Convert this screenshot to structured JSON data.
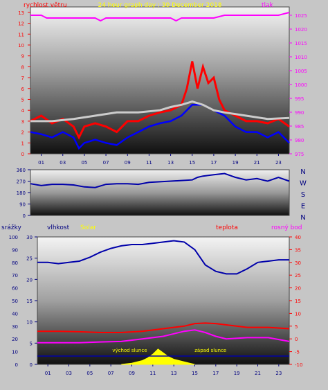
{
  "colors": {
    "frame_bg": "#c6c6c6",
    "wind_avg": "#ff0000",
    "wind_gust": "#0000ff",
    "temp_line": "#cccccc",
    "pressure": "#ff00ff",
    "direction": "#0000aa",
    "humidity": "#0000aa",
    "temperature": "#ff0000",
    "dewpoint": "#ff00ff",
    "solar": "#ffff00",
    "rain": "#0000aa",
    "title": "#ffff00"
  },
  "chart_data": [
    {
      "type": "line",
      "title": "24 hour graph day : 30 December 2018",
      "left_label": "rychlost větru",
      "right_label": "tlak",
      "left_ticks": [
        0,
        1,
        2,
        3,
        4,
        5,
        6,
        7,
        8,
        9,
        10,
        11,
        12,
        13
      ],
      "right_ticks": [
        975,
        980,
        985,
        990,
        995,
        1000,
        1005,
        1010,
        1015,
        1020,
        1025
      ],
      "x_ticks": [
        "01",
        "03",
        "05",
        "07",
        "09",
        "11",
        "13",
        "15",
        "17",
        "19",
        "21",
        "23"
      ],
      "ylim_left": [
        0,
        13.5
      ],
      "ylim_right": [
        975,
        1028
      ],
      "x_range": [
        0,
        24
      ],
      "series": [
        {
          "kind": "pressure",
          "x": [
            0,
            1,
            1.5,
            2,
            3,
            4,
            5,
            6,
            6.5,
            7,
            8,
            9,
            10,
            11,
            12,
            13,
            13.5,
            14,
            15,
            16,
            17,
            18,
            19,
            20,
            21,
            22,
            23,
            24
          ],
          "y": [
            1025,
            1025,
            1024,
            1024,
            1024,
            1024,
            1024,
            1024,
            1023,
            1024,
            1024,
            1024,
            1024,
            1024,
            1024,
            1024,
            1023,
            1024,
            1024,
            1024,
            1024,
            1025,
            1025,
            1025,
            1025,
            1025,
            1025,
            1026
          ]
        },
        {
          "kind": "wind_avg",
          "x": [
            0,
            1,
            2,
            3,
            4,
            4.5,
            5,
            6,
            7,
            8,
            9,
            10,
            11,
            12,
            13,
            14,
            14.5,
            15,
            15.5,
            16,
            16.5,
            17,
            17.5,
            18,
            19,
            20,
            21,
            22,
            23,
            24
          ],
          "y": [
            3,
            3.5,
            2.8,
            3.2,
            2.5,
            1.5,
            2.5,
            2.8,
            2.5,
            2,
            3,
            3,
            3.5,
            3.8,
            4,
            4.5,
            6,
            8.5,
            6,
            8,
            6.5,
            7,
            5,
            4,
            3.5,
            3,
            3,
            2.8,
            3.2,
            2.5
          ]
        },
        {
          "kind": "wind_gust",
          "x": [
            0,
            1,
            2,
            3,
            4,
            4.5,
            5,
            6,
            7,
            8,
            9,
            10,
            11,
            12,
            13,
            14,
            15,
            16,
            17,
            18,
            19,
            20,
            21,
            22,
            23,
            24
          ],
          "y": [
            2,
            1.8,
            1.5,
            2,
            1.5,
            0.5,
            1,
            1.3,
            1,
            0.8,
            1.5,
            2,
            2.5,
            2.8,
            3,
            3.5,
            4.5,
            4.5,
            4,
            3.5,
            2.5,
            2,
            2,
            1.5,
            2,
            1
          ]
        },
        {
          "kind": "temp_line",
          "x": [
            0,
            2,
            4,
            6,
            8,
            10,
            12,
            13,
            14,
            15,
            16,
            17,
            18,
            20,
            22,
            24
          ],
          "y": [
            3,
            3,
            3.2,
            3.5,
            3.8,
            3.8,
            4,
            4.3,
            4.5,
            4.8,
            4.5,
            4,
            3.8,
            3.5,
            3.2,
            3.3
          ]
        }
      ]
    },
    {
      "type": "line",
      "left_ticks": [
        0,
        90,
        180,
        270,
        360
      ],
      "right_labels": [
        "N",
        "W",
        "S",
        "E",
        "N"
      ],
      "x_range": [
        0,
        24
      ],
      "ylim": [
        0,
        360
      ],
      "series": [
        {
          "kind": "direction",
          "x": [
            0,
            1,
            2,
            3,
            4,
            5,
            6,
            7,
            8,
            9,
            10,
            11,
            12,
            13,
            14,
            15,
            15.5,
            16,
            17,
            18,
            19,
            20,
            21,
            22,
            23,
            24
          ],
          "y": [
            250,
            235,
            245,
            245,
            240,
            225,
            220,
            245,
            250,
            250,
            245,
            260,
            265,
            270,
            275,
            280,
            300,
            310,
            320,
            330,
            300,
            280,
            290,
            270,
            300,
            270
          ]
        }
      ]
    },
    {
      "type": "line",
      "labels": {
        "rain": "srážky",
        "humidity": "vlhkost",
        "solar": "Solar",
        "temperature": "teplota",
        "dewpoint": "rosný bod"
      },
      "left_ticks_rain": [
        0,
        10,
        20,
        30,
        40,
        50,
        60,
        70,
        80,
        90,
        100
      ],
      "left_ticks_rain_axis": [
        0,
        5,
        10,
        15,
        20,
        25,
        30
      ],
      "right_ticks_temp": [
        -10,
        -5,
        0,
        5,
        10,
        15,
        20,
        25,
        30,
        35,
        40
      ],
      "x_ticks": [
        "01",
        "03",
        "05",
        "07",
        "09",
        "11",
        "13",
        "15",
        "17",
        "19",
        "21",
        "23"
      ],
      "annotations": [
        "východ slunce",
        "západ slunce"
      ],
      "x_range": [
        0,
        24
      ],
      "series": [
        {
          "kind": "humidity",
          "x": [
            0,
            1,
            2,
            3,
            4,
            5,
            6,
            7,
            8,
            9,
            10,
            11,
            12,
            13,
            14,
            15,
            16,
            17,
            18,
            19,
            20,
            21,
            22,
            23,
            24
          ],
          "y": [
            80,
            80,
            79,
            80,
            81,
            84,
            88,
            91,
            93,
            94,
            94,
            95,
            96,
            97,
            96,
            90,
            78,
            73,
            71,
            71,
            75,
            80,
            81,
            82,
            82
          ]
        },
        {
          "kind": "temperature",
          "x": [
            0,
            2,
            4,
            6,
            8,
            10,
            12,
            14,
            15,
            16,
            17,
            18,
            20,
            22,
            24
          ],
          "y": [
            3,
            3,
            2.8,
            2.5,
            2.5,
            3,
            4,
            5,
            6,
            6.2,
            6,
            5.5,
            4.5,
            4.5,
            4
          ]
        },
        {
          "kind": "dewpoint",
          "x": [
            0,
            2,
            4,
            6,
            8,
            10,
            12,
            13,
            14,
            15,
            16,
            17,
            18,
            20,
            22,
            24
          ],
          "y": [
            -1.5,
            -1.5,
            -1.5,
            -1.2,
            -1,
            0,
            1,
            2,
            3,
            3.5,
            2.5,
            1,
            0,
            0.5,
            0.5,
            -1
          ]
        },
        {
          "kind": "solar",
          "x": [
            8,
            9,
            9.5,
            10,
            10.5,
            11,
            11.5,
            12,
            12.5,
            13,
            13.5,
            14,
            14.5,
            15
          ],
          "y": [
            0,
            1,
            2,
            3,
            5,
            8,
            12,
            9,
            6,
            4,
            3,
            2,
            1,
            0
          ]
        }
      ]
    }
  ]
}
